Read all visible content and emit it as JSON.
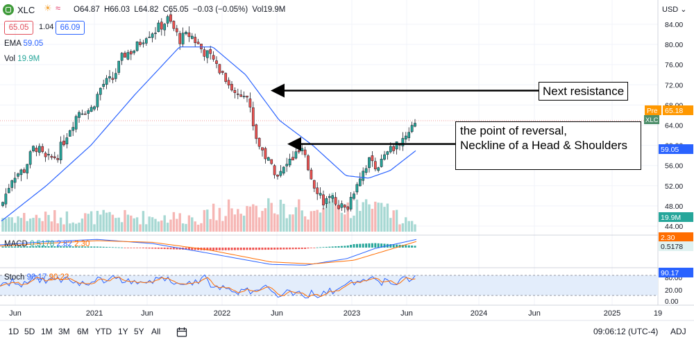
{
  "header": {
    "symbol": "XLC",
    "ohlc": [
      "O64.87",
      "H66.03",
      "L64.82",
      "C65.05",
      "−0.03 (−0.05%)",
      "Vol19.9M"
    ],
    "bid": "65.05",
    "spread": "1.04",
    "ask": "66.09",
    "ema_label": "EMA",
    "ema_value": "59.05",
    "vol_label": "Vol",
    "vol_value": "19.9M",
    "macd_label": "MACD",
    "macd_values": [
      "0.5178",
      "2.82",
      "2.30"
    ],
    "stoch_label": "Stoch",
    "stoch_values": [
      "90.17",
      "90.22"
    ],
    "currency": "USD"
  },
  "annotations": {
    "next_resistance": "Next resistance",
    "reversal_line1": "the point of reversal,",
    "reversal_line2": "Neckline of a Head & Shoulders"
  },
  "price_tags": {
    "pre_label": "Pre",
    "pre_value": "65.18",
    "symbol_tag": "XLC",
    "ema_value": "59.05",
    "vol_value": "19.9M",
    "macd_value": "2.30",
    "signal_value": "0.5178",
    "stoch_value": "90.17"
  },
  "toolbar": {
    "timeframes": [
      "1D",
      "5D",
      "1M",
      "3M",
      "6M",
      "YTD",
      "1Y",
      "5Y",
      "All"
    ],
    "clock": "09:06:12 (UTC-4)",
    "adj": "ADJ"
  },
  "colors": {
    "up": "#26a69a",
    "down": "#ef5350",
    "ema": "#2962ff",
    "macd_signal": "#ff6d00",
    "stoch_k": "#2962ff",
    "stoch_d": "#ff6d00",
    "pre": "#ff9800"
  },
  "chart_data": {
    "type": "candlestick",
    "symbol": "XLC",
    "x_ticks": [
      "Jun",
      "2021",
      "Jun",
      "2022",
      "Jun",
      "2023",
      "Jun",
      "2024",
      "Jun",
      "2025",
      "19"
    ],
    "y_ticks": [
      84.0,
      80.0,
      76.0,
      72.0,
      68.0,
      64.0,
      60.0,
      56.0,
      52.0,
      48.0,
      44.0
    ],
    "stoch_ticks": [
      "80.00",
      "20.00",
      "0.00"
    ],
    "ylim": [
      44,
      86
    ],
    "price_path": [
      {
        "date": "2020-05",
        "close": 48
      },
      {
        "date": "2020-06",
        "close": 54
      },
      {
        "date": "2020-07",
        "close": 55
      },
      {
        "date": "2020-08",
        "close": 60
      },
      {
        "date": "2020-09",
        "close": 57
      },
      {
        "date": "2020-10",
        "close": 58
      },
      {
        "date": "2020-11",
        "close": 63
      },
      {
        "date": "2020-12",
        "close": 67
      },
      {
        "date": "2021-01",
        "close": 67
      },
      {
        "date": "2021-02",
        "close": 72
      },
      {
        "date": "2021-03",
        "close": 73
      },
      {
        "date": "2021-04",
        "close": 78
      },
      {
        "date": "2021-05",
        "close": 79
      },
      {
        "date": "2021-06",
        "close": 82
      },
      {
        "date": "2021-07",
        "close": 83
      },
      {
        "date": "2021-08",
        "close": 85
      },
      {
        "date": "2021-09",
        "close": 81
      },
      {
        "date": "2021-10",
        "close": 82
      },
      {
        "date": "2021-11",
        "close": 79
      },
      {
        "date": "2021-12",
        "close": 77
      },
      {
        "date": "2022-01",
        "close": 74
      },
      {
        "date": "2022-02",
        "close": 70
      },
      {
        "date": "2022-03",
        "close": 71
      },
      {
        "date": "2022-04",
        "close": 61
      },
      {
        "date": "2022-05",
        "close": 57
      },
      {
        "date": "2022-06",
        "close": 54
      },
      {
        "date": "2022-07",
        "close": 57
      },
      {
        "date": "2022-08",
        "close": 59
      },
      {
        "date": "2022-09",
        "close": 53
      },
      {
        "date": "2022-10",
        "close": 49
      },
      {
        "date": "2022-11",
        "close": 49
      },
      {
        "date": "2022-12",
        "close": 47
      },
      {
        "date": "2023-01",
        "close": 53
      },
      {
        "date": "2023-02",
        "close": 57
      },
      {
        "date": "2023-03",
        "close": 56
      },
      {
        "date": "2023-04",
        "close": 59
      },
      {
        "date": "2023-05",
        "close": 61
      },
      {
        "date": "2023-06",
        "close": 65.05
      }
    ],
    "ema_path": [
      {
        "date": "2020-05",
        "value": 45
      },
      {
        "date": "2020-09",
        "value": 52
      },
      {
        "date": "2021-01",
        "value": 60
      },
      {
        "date": "2021-05",
        "value": 70
      },
      {
        "date": "2021-09",
        "value": 79.5
      },
      {
        "date": "2021-12",
        "value": 79.5
      },
      {
        "date": "2022-03",
        "value": 74
      },
      {
        "date": "2022-06",
        "value": 65
      },
      {
        "date": "2022-09",
        "value": 60
      },
      {
        "date": "2022-12",
        "value": 54
      },
      {
        "date": "2023-02",
        "value": 53.5
      },
      {
        "date": "2023-04",
        "value": 55
      },
      {
        "date": "2023-06",
        "value": 59.05
      }
    ],
    "levels": {
      "next_resistance": 71,
      "neckline": 60,
      "pre_market": 65.18
    }
  }
}
